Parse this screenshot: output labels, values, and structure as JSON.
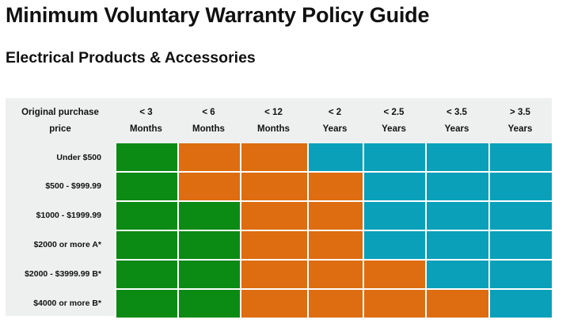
{
  "page": {
    "title": "Minimum Voluntary Warranty Policy Guide",
    "subtitle": "Electrical Products & Accessories"
  },
  "table": {
    "corner_header": [
      "Original purchase",
      "price"
    ],
    "columns": [
      {
        "line1": "< 3",
        "line2": "Months"
      },
      {
        "line1": "< 6",
        "line2": "Months"
      },
      {
        "line1": "< 12",
        "line2": "Months"
      },
      {
        "line1": "< 2",
        "line2": "Years"
      },
      {
        "line1": "< 2.5",
        "line2": "Years"
      },
      {
        "line1": "< 3.5",
        "line2": "Years"
      },
      {
        "line1": "> 3.5",
        "line2": "Years"
      }
    ],
    "rows": [
      {
        "label": "Under $500",
        "cells": [
          "green",
          "orange",
          "orange",
          "teal",
          "teal",
          "teal",
          "teal"
        ]
      },
      {
        "label": "$500 - $999.99",
        "cells": [
          "green",
          "orange",
          "orange",
          "orange",
          "teal",
          "teal",
          "teal"
        ]
      },
      {
        "label": "$1000 - $1999.99",
        "cells": [
          "green",
          "green",
          "orange",
          "orange",
          "teal",
          "teal",
          "teal"
        ]
      },
      {
        "label": "$2000 or more A*",
        "cells": [
          "green",
          "green",
          "orange",
          "orange",
          "teal",
          "teal",
          "teal"
        ]
      },
      {
        "label": "$2000 - $3999.99 B*",
        "cells": [
          "green",
          "green",
          "orange",
          "orange",
          "orange",
          "teal",
          "teal"
        ]
      },
      {
        "label": "$4000 or more B*",
        "cells": [
          "green",
          "green",
          "orange",
          "orange",
          "orange",
          "orange",
          "teal"
        ]
      }
    ]
  },
  "colors": {
    "green": "#0b8a14",
    "orange": "#dd6d10",
    "teal": "#0aa0ba",
    "panel": "#eef0f0"
  }
}
